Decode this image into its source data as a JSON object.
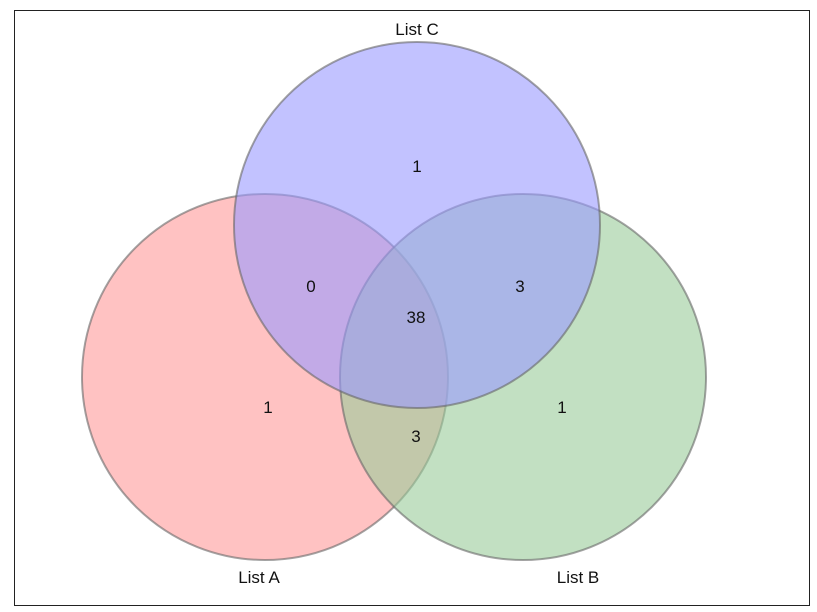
{
  "venn": {
    "sets": [
      {
        "key": "a",
        "label": "List A",
        "color": "#ff9999"
      },
      {
        "key": "b",
        "label": "List B",
        "color": "#99cc99"
      },
      {
        "key": "c",
        "label": "List C",
        "color": "#9999ff"
      }
    ],
    "regions": {
      "a_only": "1",
      "b_only": "1",
      "c_only": "1",
      "a_c": "0",
      "b_c": "3",
      "a_b": "3",
      "a_b_c": "38"
    }
  }
}
